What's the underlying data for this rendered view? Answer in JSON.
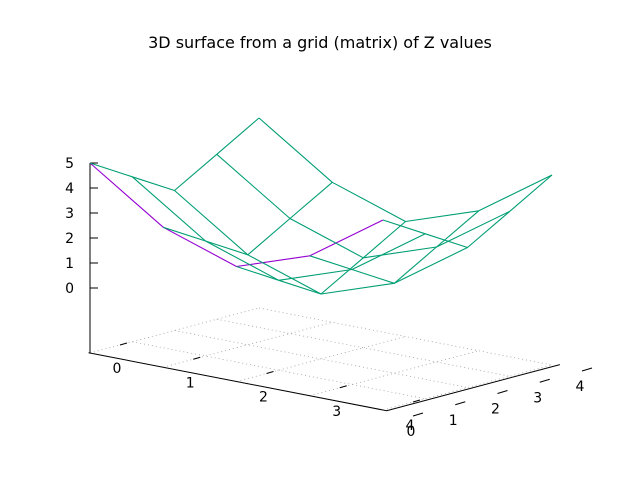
{
  "chart_data": {
    "type": "surface",
    "title": "3D surface from a grid (matrix) of Z values",
    "x_ticks": [
      "0",
      "1",
      "2",
      "3",
      "4"
    ],
    "y_ticks": [
      "0",
      "1",
      "2",
      "3",
      "4"
    ],
    "z_ticks": [
      "0",
      "1",
      "2",
      "3",
      "4",
      "5"
    ],
    "xlim": [
      0,
      4
    ],
    "ylim": [
      0,
      4
    ],
    "zlim": [
      0,
      5
    ],
    "grid": true,
    "x": [
      0,
      1,
      2,
      3,
      4
    ],
    "y": [
      0,
      1,
      2,
      3,
      4
    ],
    "z": [
      [
        5,
        4,
        3,
        4,
        5
      ],
      [
        3,
        2,
        1,
        2,
        3
      ],
      [
        2,
        1,
        0,
        1,
        2
      ],
      [
        3,
        2,
        1,
        2,
        3
      ],
      [
        5,
        4,
        3,
        4,
        5
      ]
    ],
    "colors": {
      "front_surface": "#9400d3",
      "back_surface": "#009e73"
    }
  }
}
